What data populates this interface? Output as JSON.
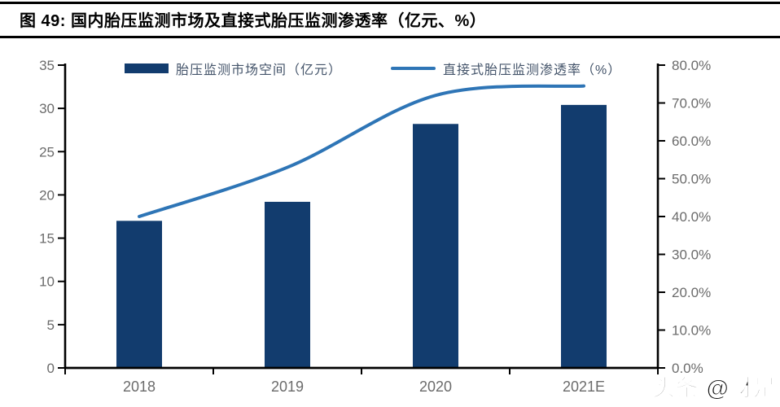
{
  "page": {
    "title": "图 49:  国内胎压监测市场及直接式胎压监测渗透率（亿元、%）",
    "watermark": "头条 @财是"
  },
  "colors": {
    "bar": "#123C6E",
    "line": "#2E75B6",
    "axis": "#000000",
    "tick_label": "#6B6B6B",
    "legend_text": "#44546A"
  },
  "chart_data": {
    "type": "bar+line",
    "title": "国内胎压监测市场及直接式胎压监测渗透率（亿元、%）",
    "categories": [
      "2018",
      "2019",
      "2020",
      "2021E"
    ],
    "series": [
      {
        "name": "胎压监测市场空间（亿元）",
        "type": "bar",
        "y_axis": "left",
        "values": [
          17,
          19.2,
          28.2,
          30.4
        ]
      },
      {
        "name": "直接式胎压监测渗透率（%）",
        "type": "line",
        "y_axis": "right",
        "values": [
          40,
          53,
          72,
          74.5
        ]
      }
    ],
    "left_axis": {
      "min": 0,
      "max": 35,
      "step": 5,
      "tick_labels": [
        "0",
        "5",
        "10",
        "15",
        "20",
        "25",
        "30",
        "35"
      ]
    },
    "right_axis": {
      "min": 0,
      "max": 80,
      "step": 10,
      "tick_labels": [
        "0.0%",
        "10.0%",
        "20.0%",
        "30.0%",
        "40.0%",
        "50.0%",
        "60.0%",
        "70.0%",
        "80.0%"
      ]
    },
    "grid": false,
    "legend_position": "top"
  }
}
